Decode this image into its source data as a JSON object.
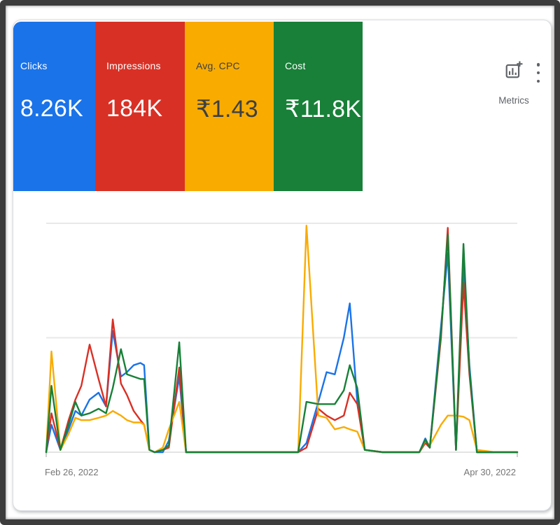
{
  "cards": [
    {
      "id": "clicks",
      "label": "Clicks",
      "value": "8.26K",
      "bg": "#1a73e8",
      "text": "#ffffff"
    },
    {
      "id": "impressions",
      "label": "Impressions",
      "value": "184K",
      "bg": "#d93025",
      "text": "#ffffff"
    },
    {
      "id": "avg-cpc",
      "label": "Avg. CPC",
      "value": "₹1.43",
      "bg": "#f9ab00",
      "text": "#3c4043"
    },
    {
      "id": "cost",
      "label": "Cost",
      "value": "₹11.8K",
      "bg": "#188038",
      "text": "#ffffff"
    }
  ],
  "toolbar": {
    "metrics_label": "Metrics"
  },
  "chart_data": {
    "type": "line",
    "title": "",
    "legend_position": "none",
    "x_axis": {
      "start_label": "Feb 26, 2022",
      "end_label": "Apr 30, 2022",
      "days": 63,
      "unit": "days_since_start"
    },
    "y_axis": {
      "min": 0,
      "max": 100,
      "unit": "percent_of_axis_max",
      "tick_labels_visible": false,
      "gridlines_pct": [
        0,
        50,
        100
      ]
    },
    "series": [
      {
        "name": "Clicks",
        "color": "#1a73e8",
        "points": [
          [
            0,
            0
          ],
          [
            0.7,
            12
          ],
          [
            1.9,
            1
          ],
          [
            3,
            10
          ],
          [
            3.9,
            18
          ],
          [
            4.7,
            16
          ],
          [
            5.8,
            23
          ],
          [
            7,
            26
          ],
          [
            8,
            20
          ],
          [
            8.9,
            53
          ],
          [
            10,
            33
          ],
          [
            10.8,
            35
          ],
          [
            11.7,
            38
          ],
          [
            12.6,
            39
          ],
          [
            13.1,
            38
          ],
          [
            13.8,
            1
          ],
          [
            14.5,
            0
          ],
          [
            15.6,
            0
          ],
          [
            16.4,
            5
          ],
          [
            17.8,
            33
          ],
          [
            18.7,
            0
          ],
          [
            21,
            0
          ],
          [
            25,
            0
          ],
          [
            29,
            0
          ],
          [
            33.7,
            0
          ],
          [
            34.8,
            4
          ],
          [
            36.4,
            22
          ],
          [
            37.5,
            35
          ],
          [
            38.6,
            34
          ],
          [
            39.8,
            50
          ],
          [
            40.6,
            65
          ],
          [
            41.6,
            22
          ],
          [
            42.6,
            1
          ],
          [
            45,
            0
          ],
          [
            48,
            0
          ],
          [
            49.9,
            0
          ],
          [
            50.7,
            6
          ],
          [
            51.3,
            2
          ],
          [
            52.8,
            55
          ],
          [
            53.7,
            87
          ],
          [
            54.8,
            1
          ],
          [
            55.8,
            82
          ],
          [
            56.6,
            38
          ],
          [
            57.6,
            0
          ],
          [
            60,
            0
          ],
          [
            63,
            0
          ]
        ]
      },
      {
        "name": "Impressions",
        "color": "#d93025",
        "points": [
          [
            0,
            0
          ],
          [
            0.7,
            17
          ],
          [
            1.9,
            1
          ],
          [
            3,
            14
          ],
          [
            3.9,
            23
          ],
          [
            4.7,
            29
          ],
          [
            5.8,
            47
          ],
          [
            7,
            32
          ],
          [
            8,
            20
          ],
          [
            8.9,
            58
          ],
          [
            10,
            30
          ],
          [
            10.8,
            25
          ],
          [
            11.7,
            18
          ],
          [
            12.6,
            14
          ],
          [
            13.1,
            12
          ],
          [
            13.8,
            1
          ],
          [
            14.5,
            0
          ],
          [
            15.6,
            1
          ],
          [
            16.4,
            2
          ],
          [
            17.8,
            37
          ],
          [
            18.7,
            0
          ],
          [
            21,
            0
          ],
          [
            25,
            0
          ],
          [
            29,
            0
          ],
          [
            33.7,
            0
          ],
          [
            34.8,
            2
          ],
          [
            36.4,
            19
          ],
          [
            37.5,
            16
          ],
          [
            38.6,
            14
          ],
          [
            39.8,
            16
          ],
          [
            40.6,
            26
          ],
          [
            41.6,
            21
          ],
          [
            42.6,
            1
          ],
          [
            45,
            0
          ],
          [
            48,
            0
          ],
          [
            49.9,
            0
          ],
          [
            50.7,
            4
          ],
          [
            51.3,
            2
          ],
          [
            52.8,
            50
          ],
          [
            53.7,
            98
          ],
          [
            54.8,
            1
          ],
          [
            55.8,
            74
          ],
          [
            56.6,
            34
          ],
          [
            57.6,
            0
          ],
          [
            60,
            0
          ],
          [
            63,
            0
          ]
        ]
      },
      {
        "name": "Avg. CPC",
        "color": "#f9ab00",
        "points": [
          [
            0,
            0
          ],
          [
            0.7,
            44
          ],
          [
            1.9,
            1
          ],
          [
            3,
            8
          ],
          [
            3.9,
            15
          ],
          [
            4.7,
            14
          ],
          [
            5.8,
            14
          ],
          [
            7,
            15
          ],
          [
            8,
            16
          ],
          [
            8.9,
            18
          ],
          [
            10,
            16
          ],
          [
            10.8,
            14
          ],
          [
            11.7,
            13
          ],
          [
            12.6,
            13
          ],
          [
            13.1,
            12
          ],
          [
            13.8,
            1
          ],
          [
            14.5,
            0
          ],
          [
            15.6,
            2
          ],
          [
            16.4,
            10
          ],
          [
            17.8,
            22
          ],
          [
            18.7,
            0
          ],
          [
            21,
            0
          ],
          [
            25,
            0
          ],
          [
            29,
            0
          ],
          [
            33.7,
            0
          ],
          [
            34.8,
            99
          ],
          [
            36.4,
            16
          ],
          [
            37.5,
            15
          ],
          [
            38.6,
            10
          ],
          [
            39.8,
            11
          ],
          [
            40.6,
            10
          ],
          [
            41.6,
            9
          ],
          [
            42.6,
            1
          ],
          [
            45,
            0
          ],
          [
            48,
            0
          ],
          [
            49.9,
            0
          ],
          [
            50.7,
            5
          ],
          [
            51.3,
            3
          ],
          [
            52.8,
            12
          ],
          [
            53.7,
            16
          ],
          [
            54.8,
            16
          ],
          [
            55.8,
            15.5
          ],
          [
            56.6,
            14
          ],
          [
            57.6,
            1
          ],
          [
            60,
            0
          ],
          [
            63,
            0
          ]
        ]
      },
      {
        "name": "Cost",
        "color": "#188038",
        "points": [
          [
            0,
            0
          ],
          [
            0.7,
            29
          ],
          [
            1.9,
            1
          ],
          [
            3,
            12
          ],
          [
            3.9,
            22
          ],
          [
            4.7,
            16
          ],
          [
            5.8,
            17
          ],
          [
            7,
            19
          ],
          [
            8,
            17
          ],
          [
            8.9,
            28
          ],
          [
            10,
            45
          ],
          [
            10.8,
            34
          ],
          [
            11.7,
            33
          ],
          [
            12.6,
            32
          ],
          [
            13.1,
            32
          ],
          [
            13.8,
            1
          ],
          [
            14.5,
            0
          ],
          [
            15.6,
            1
          ],
          [
            16.4,
            3
          ],
          [
            17.8,
            48
          ],
          [
            18.7,
            0
          ],
          [
            21,
            0
          ],
          [
            25,
            0
          ],
          [
            29,
            0
          ],
          [
            33.7,
            0
          ],
          [
            34.8,
            22
          ],
          [
            36.4,
            21
          ],
          [
            37.5,
            21
          ],
          [
            38.6,
            21
          ],
          [
            39.8,
            27
          ],
          [
            40.6,
            38
          ],
          [
            41.6,
            28
          ],
          [
            42.6,
            1
          ],
          [
            45,
            0
          ],
          [
            48,
            0
          ],
          [
            49.9,
            0
          ],
          [
            50.7,
            5.5
          ],
          [
            51.3,
            2
          ],
          [
            52.8,
            52
          ],
          [
            53.7,
            95
          ],
          [
            54.8,
            1
          ],
          [
            55.8,
            91
          ],
          [
            56.6,
            36
          ],
          [
            57.6,
            0
          ],
          [
            60,
            0
          ],
          [
            63,
            0
          ]
        ]
      }
    ]
  }
}
